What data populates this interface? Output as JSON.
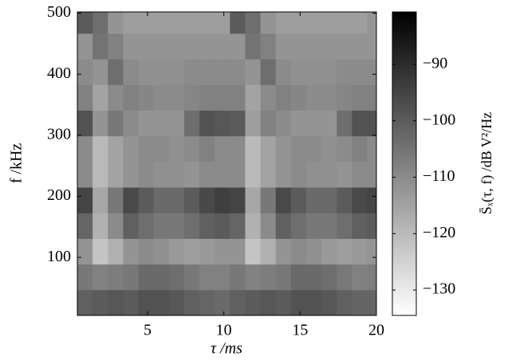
{
  "chart_data": {
    "type": "heatmap",
    "x_label": "τ /ms",
    "y_label": "f /kHz",
    "colorbar_label": "S̄ₓ(τ, f) /dB V²/Hz",
    "xlim": [
      0.4,
      20
    ],
    "xticks": [
      5,
      10,
      15,
      20
    ],
    "ylim": [
      5,
      502
    ],
    "yticks": [
      100,
      200,
      300,
      400,
      500
    ],
    "zlim": [
      -134.5,
      -80.7
    ],
    "zticks": [
      {
        "value": -90,
        "label": "−90"
      },
      {
        "value": -100,
        "label": "−100"
      },
      {
        "value": -110,
        "label": "−110"
      },
      {
        "value": -120,
        "label": "−120"
      },
      {
        "value": -130,
        "label": "−130"
      }
    ],
    "colormap": [
      "#ffffff",
      "#000000"
    ],
    "x": [
      0.9,
      1.9,
      2.9,
      3.9,
      4.9,
      5.9,
      6.9,
      7.9,
      8.9,
      9.9,
      10.9,
      11.9,
      12.9,
      13.9,
      14.9,
      15.9,
      16.9,
      17.9,
      18.9,
      19.9
    ],
    "y": [
      26,
      68,
      110,
      152,
      194,
      236,
      278,
      320,
      362,
      404,
      446,
      488
    ],
    "z": [
      [
        -101,
        -100,
        -99,
        -100,
        -98,
        -98,
        -99,
        -101,
        -102,
        -103,
        -101,
        -100,
        -99,
        -100,
        -98,
        -98,
        -99,
        -101,
        -102,
        -102
      ],
      [
        -106,
        -108,
        -107,
        -106,
        -103,
        -103,
        -104,
        -106,
        -108,
        -108,
        -106,
        -108,
        -107,
        -106,
        -103,
        -103,
        -104,
        -106,
        -108,
        -107
      ],
      [
        -112,
        -122,
        -118,
        -112,
        -110,
        -111,
        -113,
        -114,
        -113,
        -112,
        -112,
        -122,
        -118,
        -112,
        -110,
        -111,
        -113,
        -114,
        -113,
        -112
      ],
      [
        -102,
        -118,
        -110,
        -101,
        -104,
        -106,
        -106,
        -104,
        -101,
        -100,
        -102,
        -118,
        -110,
        -101,
        -104,
        -106,
        -106,
        -104,
        -101,
        -100
      ],
      [
        -95,
        -116,
        -106,
        -96,
        -100,
        -103,
        -103,
        -100,
        -96,
        -94,
        -95,
        -116,
        -106,
        -96,
        -100,
        -103,
        -103,
        -100,
        -96,
        -95
      ],
      [
        -110,
        -120,
        -115,
        -112,
        -110,
        -111,
        -111,
        -112,
        -110,
        -110,
        -110,
        -120,
        -115,
        -112,
        -110,
        -111,
        -111,
        -112,
        -110,
        -110
      ],
      [
        -110,
        -120,
        -115,
        -112,
        -110,
        -110,
        -111,
        -110,
        -108,
        -110,
        -110,
        -120,
        -115,
        -112,
        -110,
        -110,
        -111,
        -110,
        -108,
        -110
      ],
      [
        -98,
        -112,
        -106,
        -110,
        -112,
        -112,
        -112,
        -104,
        -98,
        -99,
        -100,
        -114,
        -108,
        -110,
        -112,
        -112,
        -112,
        -104,
        -98,
        -98
      ],
      [
        -108,
        -115,
        -110,
        -108,
        -109,
        -110,
        -110,
        -109,
        -108,
        -108,
        -108,
        -115,
        -110,
        -108,
        -109,
        -110,
        -110,
        -109,
        -108,
        -108
      ],
      [
        -110,
        -112,
        -104,
        -110,
        -111,
        -111,
        -111,
        -110,
        -110,
        -110,
        -110,
        -112,
        -104,
        -110,
        -111,
        -111,
        -111,
        -110,
        -110,
        -110
      ],
      [
        -112,
        -105,
        -108,
        -112,
        -112,
        -112,
        -112,
        -112,
        -112,
        -112,
        -112,
        -105,
        -108,
        -112,
        -112,
        -112,
        -112,
        -112,
        -112,
        -112
      ],
      [
        -100,
        -104,
        -112,
        -114,
        -114,
        -114,
        -114,
        -114,
        -114,
        -114,
        -100,
        -104,
        -112,
        -114,
        -114,
        -114,
        -114,
        -114,
        -114,
        -112
      ]
    ]
  }
}
